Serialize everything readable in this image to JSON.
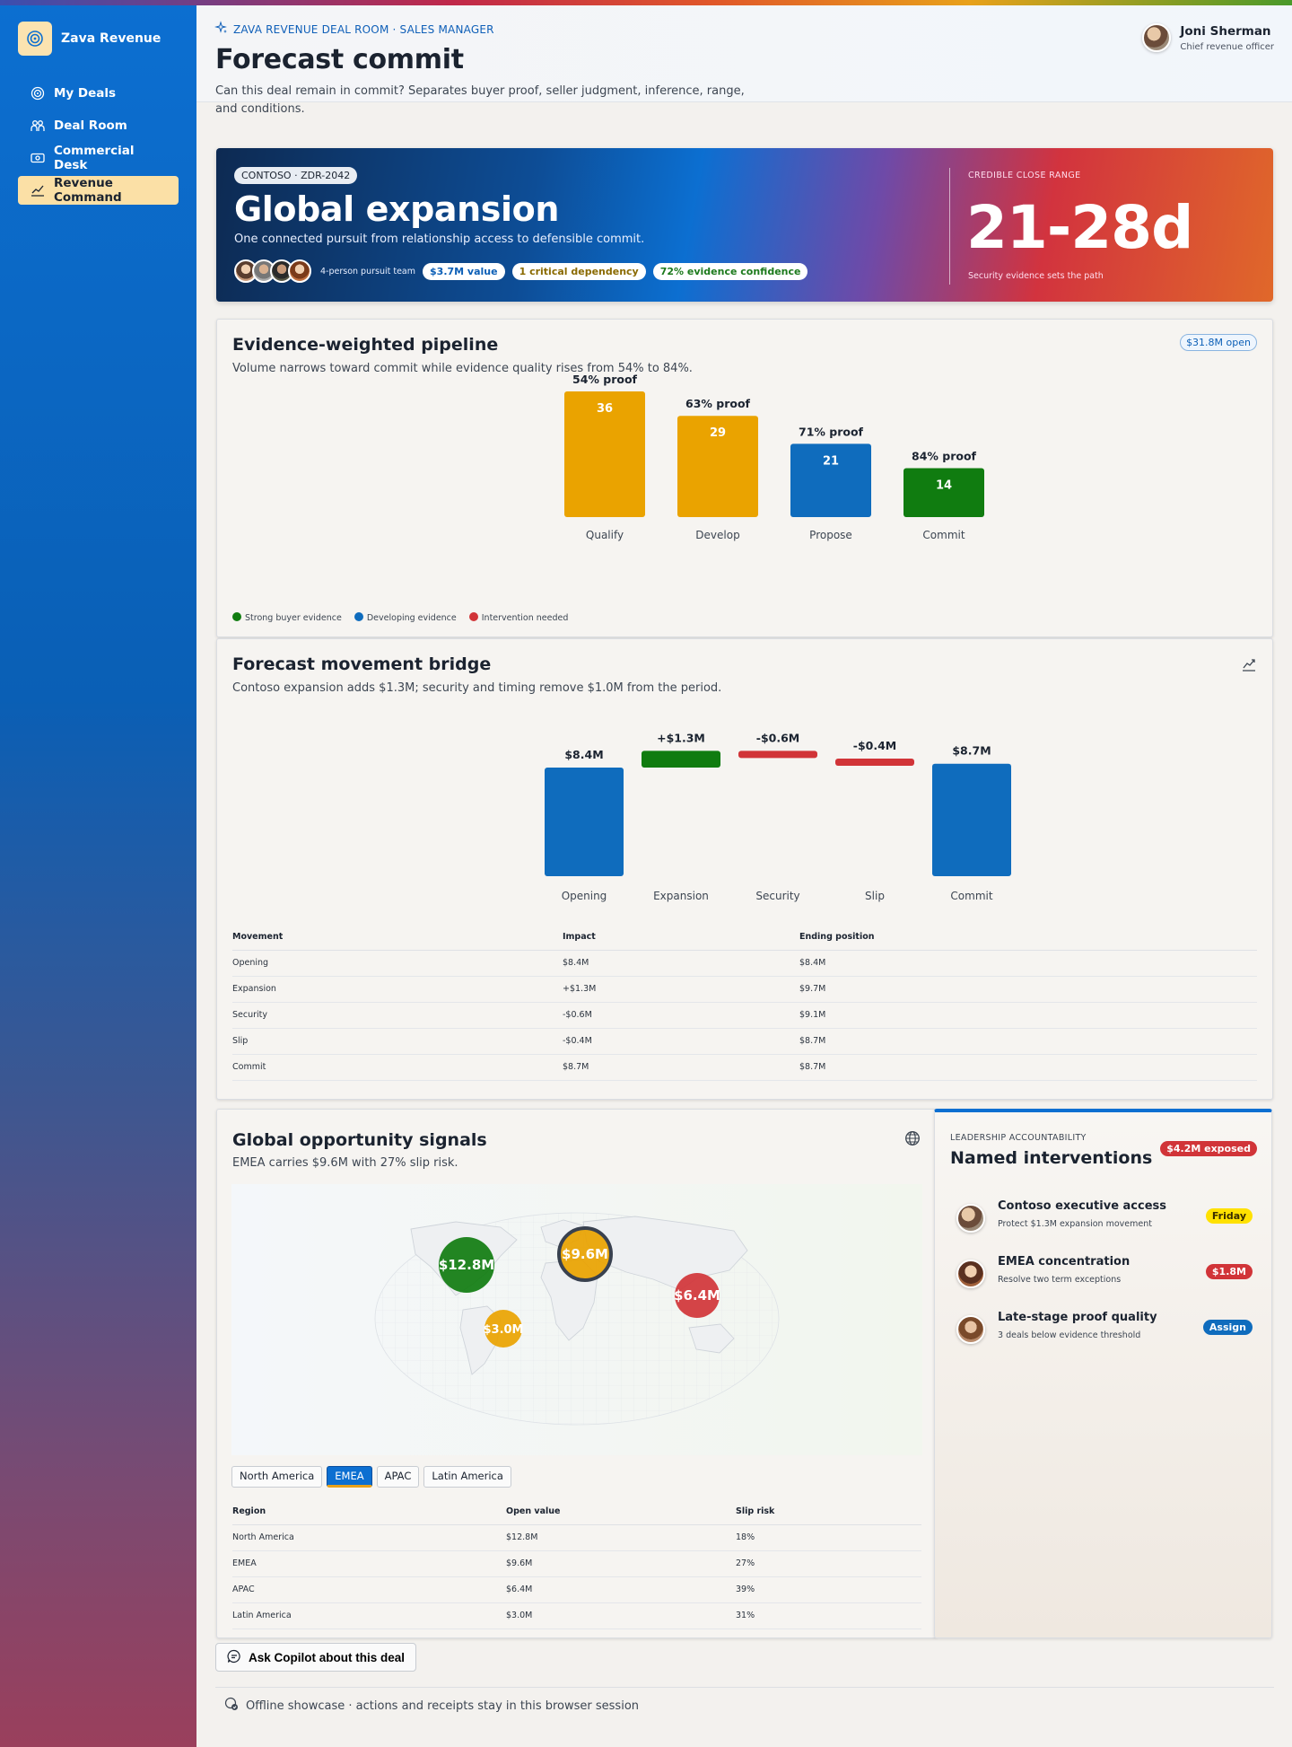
{
  "app": {
    "name": "Zava Revenue"
  },
  "nav": [
    {
      "label": "My Deals",
      "icon": "target-icon"
    },
    {
      "label": "Deal Room",
      "icon": "people-icon"
    },
    {
      "label": "Commercial Desk",
      "icon": "money-icon"
    },
    {
      "label": "Revenue Command",
      "icon": "trend-icon",
      "active": true
    }
  ],
  "header": {
    "eyebrow": "ZAVA REVENUE DEAL ROOM · SALES MANAGER",
    "title": "Forecast commit",
    "subtitle": "Can this deal remain in commit? Separates buyer proof, seller judgment, inference, range, and conditions."
  },
  "user": {
    "name": "Joni Sherman",
    "role": "Chief revenue officer"
  },
  "hero": {
    "tag": "CONTOSO · ZDR-2042",
    "title": "Global expansion",
    "subtitle": "One connected pursuit from relationship access to defensible commit.",
    "team_label": "4-person pursuit team",
    "pills": [
      "$3.7M value",
      "1 critical dependency",
      "72% evidence confidence"
    ],
    "range_label": "CREDIBLE CLOSE RANGE",
    "range": "21-28d",
    "range_sub": "Security evidence sets the path"
  },
  "pipeline": {
    "title": "Evidence-weighted pipeline",
    "subtitle": "Volume narrows toward commit while evidence quality rises from 54% to 84%.",
    "badge": "$31.8M open",
    "legend": [
      {
        "label": "Strong buyer evidence",
        "color": "#107c10"
      },
      {
        "label": "Developing evidence",
        "color": "#0f6cbd"
      },
      {
        "label": "Intervention needed",
        "color": "#d13438"
      }
    ],
    "chart_data": {
      "type": "bar",
      "categories": [
        "Qualify",
        "Develop",
        "Propose",
        "Commit"
      ],
      "values": [
        36,
        29,
        21,
        14
      ],
      "proof_labels": [
        "54% proof",
        "63% proof",
        "71% proof",
        "84% proof"
      ],
      "colors": [
        "#eaa300",
        "#eaa300",
        "#0f6cbd",
        "#107c10"
      ],
      "ylim": [
        0,
        36
      ]
    }
  },
  "bridge": {
    "title": "Forecast movement bridge",
    "subtitle": "Contoso expansion adds $1.3M; security and timing remove $1.0M from the period.",
    "chart_data": {
      "type": "bar",
      "categories": [
        "Opening",
        "Expansion",
        "Security",
        "Slip",
        "Commit"
      ],
      "values": [
        8.4,
        1.3,
        -0.6,
        -0.4,
        8.7
      ],
      "labels": [
        "$8.4M",
        "+$1.3M",
        "-$0.6M",
        "-$0.4M",
        "$8.7M"
      ],
      "kinds": [
        "total",
        "delta",
        "delta",
        "delta",
        "total"
      ],
      "colors": [
        "#0f6cbd",
        "#107c10",
        "#d13438",
        "#d13438",
        "#0f6cbd"
      ]
    },
    "table": {
      "headers": [
        "Movement",
        "Impact",
        "Ending position"
      ],
      "rows": [
        [
          "Opening",
          "$8.4M",
          "$8.4M"
        ],
        [
          "Expansion",
          "+$1.3M",
          "$9.7M"
        ],
        [
          "Security",
          "-$0.6M",
          "$9.1M"
        ],
        [
          "Slip",
          "-$0.4M",
          "$8.7M"
        ],
        [
          "Commit",
          "$8.7M",
          "$8.7M"
        ]
      ]
    }
  },
  "signals": {
    "title": "Global opportunity signals",
    "subtitle": "EMEA carries $9.6M with 27% slip risk.",
    "bubbles": [
      {
        "label": "$12.8M",
        "color": "#107c10",
        "region": "North America"
      },
      {
        "label": "$9.6M",
        "color": "#eaa300",
        "region": "EMEA",
        "selected": true
      },
      {
        "label": "$6.4M",
        "color": "#d13438",
        "region": "APAC"
      },
      {
        "label": "$3.0M",
        "color": "#eaa300",
        "region": "Latin America"
      }
    ],
    "tabs": [
      "North America",
      "EMEA",
      "APAC",
      "Latin America"
    ],
    "active_tab": "EMEA",
    "table": {
      "headers": [
        "Region",
        "Open value",
        "Slip risk"
      ],
      "rows": [
        [
          "North America",
          "$12.8M",
          "18%"
        ],
        [
          "EMEA",
          "$9.6M",
          "27%"
        ],
        [
          "APAC",
          "$6.4M",
          "39%"
        ],
        [
          "Latin America",
          "$3.0M",
          "31%"
        ]
      ]
    }
  },
  "interventions": {
    "eyebrow": "LEADERSHIP ACCOUNTABILITY",
    "title": "Named interventions",
    "badge": "$4.2M exposed",
    "items": [
      {
        "title": "Contoso executive access",
        "sub": "Protect $1.3M expansion movement",
        "badge": "Friday",
        "badge_color": "#ffe100",
        "badge_text": "#3a2e00"
      },
      {
        "title": "EMEA concentration",
        "sub": "Resolve two term exceptions",
        "badge": "$1.8M",
        "badge_color": "#d13438",
        "badge_text": "#ffffff"
      },
      {
        "title": "Late-stage proof quality",
        "sub": "3 deals below evidence threshold",
        "badge": "Assign",
        "badge_color": "#0f6cbd",
        "badge_text": "#ffffff"
      }
    ]
  },
  "copilot": {
    "label": "Ask Copilot about this deal"
  },
  "footer": {
    "text": "Offline showcase · actions and receipts stay in this browser session"
  }
}
